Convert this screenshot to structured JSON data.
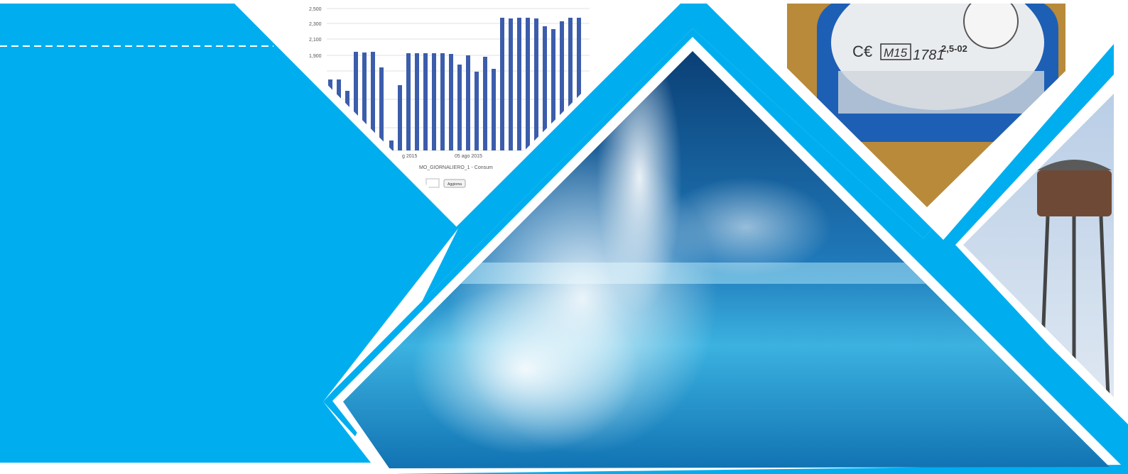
{
  "chart_fragment": {
    "yticks": [
      "2,500",
      "2,300",
      "2,100",
      "1,900"
    ],
    "xticks": [
      "g 2015",
      "05 ago 2015"
    ],
    "caption": "MO_GIORNALIERO_1 - Consum",
    "button": "Aggiorna"
  },
  "meter": {
    "mark": "M15",
    "number": "1781",
    "code": "2,5-02"
  }
}
